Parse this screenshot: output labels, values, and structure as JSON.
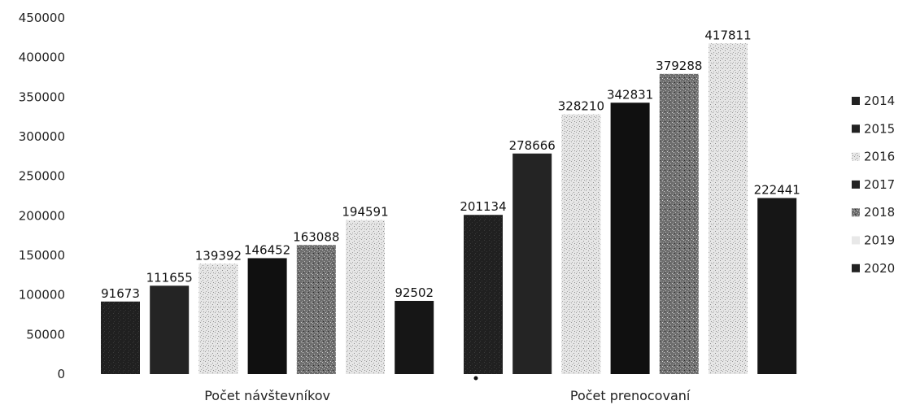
{
  "chart_data": {
    "type": "bar",
    "categories": [
      "Počet návštevníkov",
      "Počet prenocovaní"
    ],
    "series": [
      {
        "name": "2014",
        "values": [
          91673,
          201134
        ],
        "color": "#1a1a1a"
      },
      {
        "name": "2015",
        "values": [
          111655,
          278666
        ],
        "color": "#262626"
      },
      {
        "name": "2016",
        "values": [
          139392,
          328210
        ],
        "color": "#b8b8b8"
      },
      {
        "name": "2017",
        "values": [
          146452,
          342831
        ],
        "color": "#0f0f0f"
      },
      {
        "name": "2018",
        "values": [
          163088,
          379288
        ],
        "color": "#5a5a5a"
      },
      {
        "name": "2019",
        "values": [
          194591,
          417811
        ],
        "color": "#dcdcdc"
      },
      {
        "name": "2020",
        "values": [
          92502,
          222441
        ],
        "color": "#141414"
      }
    ],
    "ylim": [
      0,
      450000
    ],
    "yticks": [
      0,
      50000,
      100000,
      150000,
      200000,
      250000,
      300000,
      350000,
      400000,
      450000
    ],
    "grid": false,
    "legend": "right",
    "title": "",
    "xlabel": "",
    "ylabel": ""
  }
}
